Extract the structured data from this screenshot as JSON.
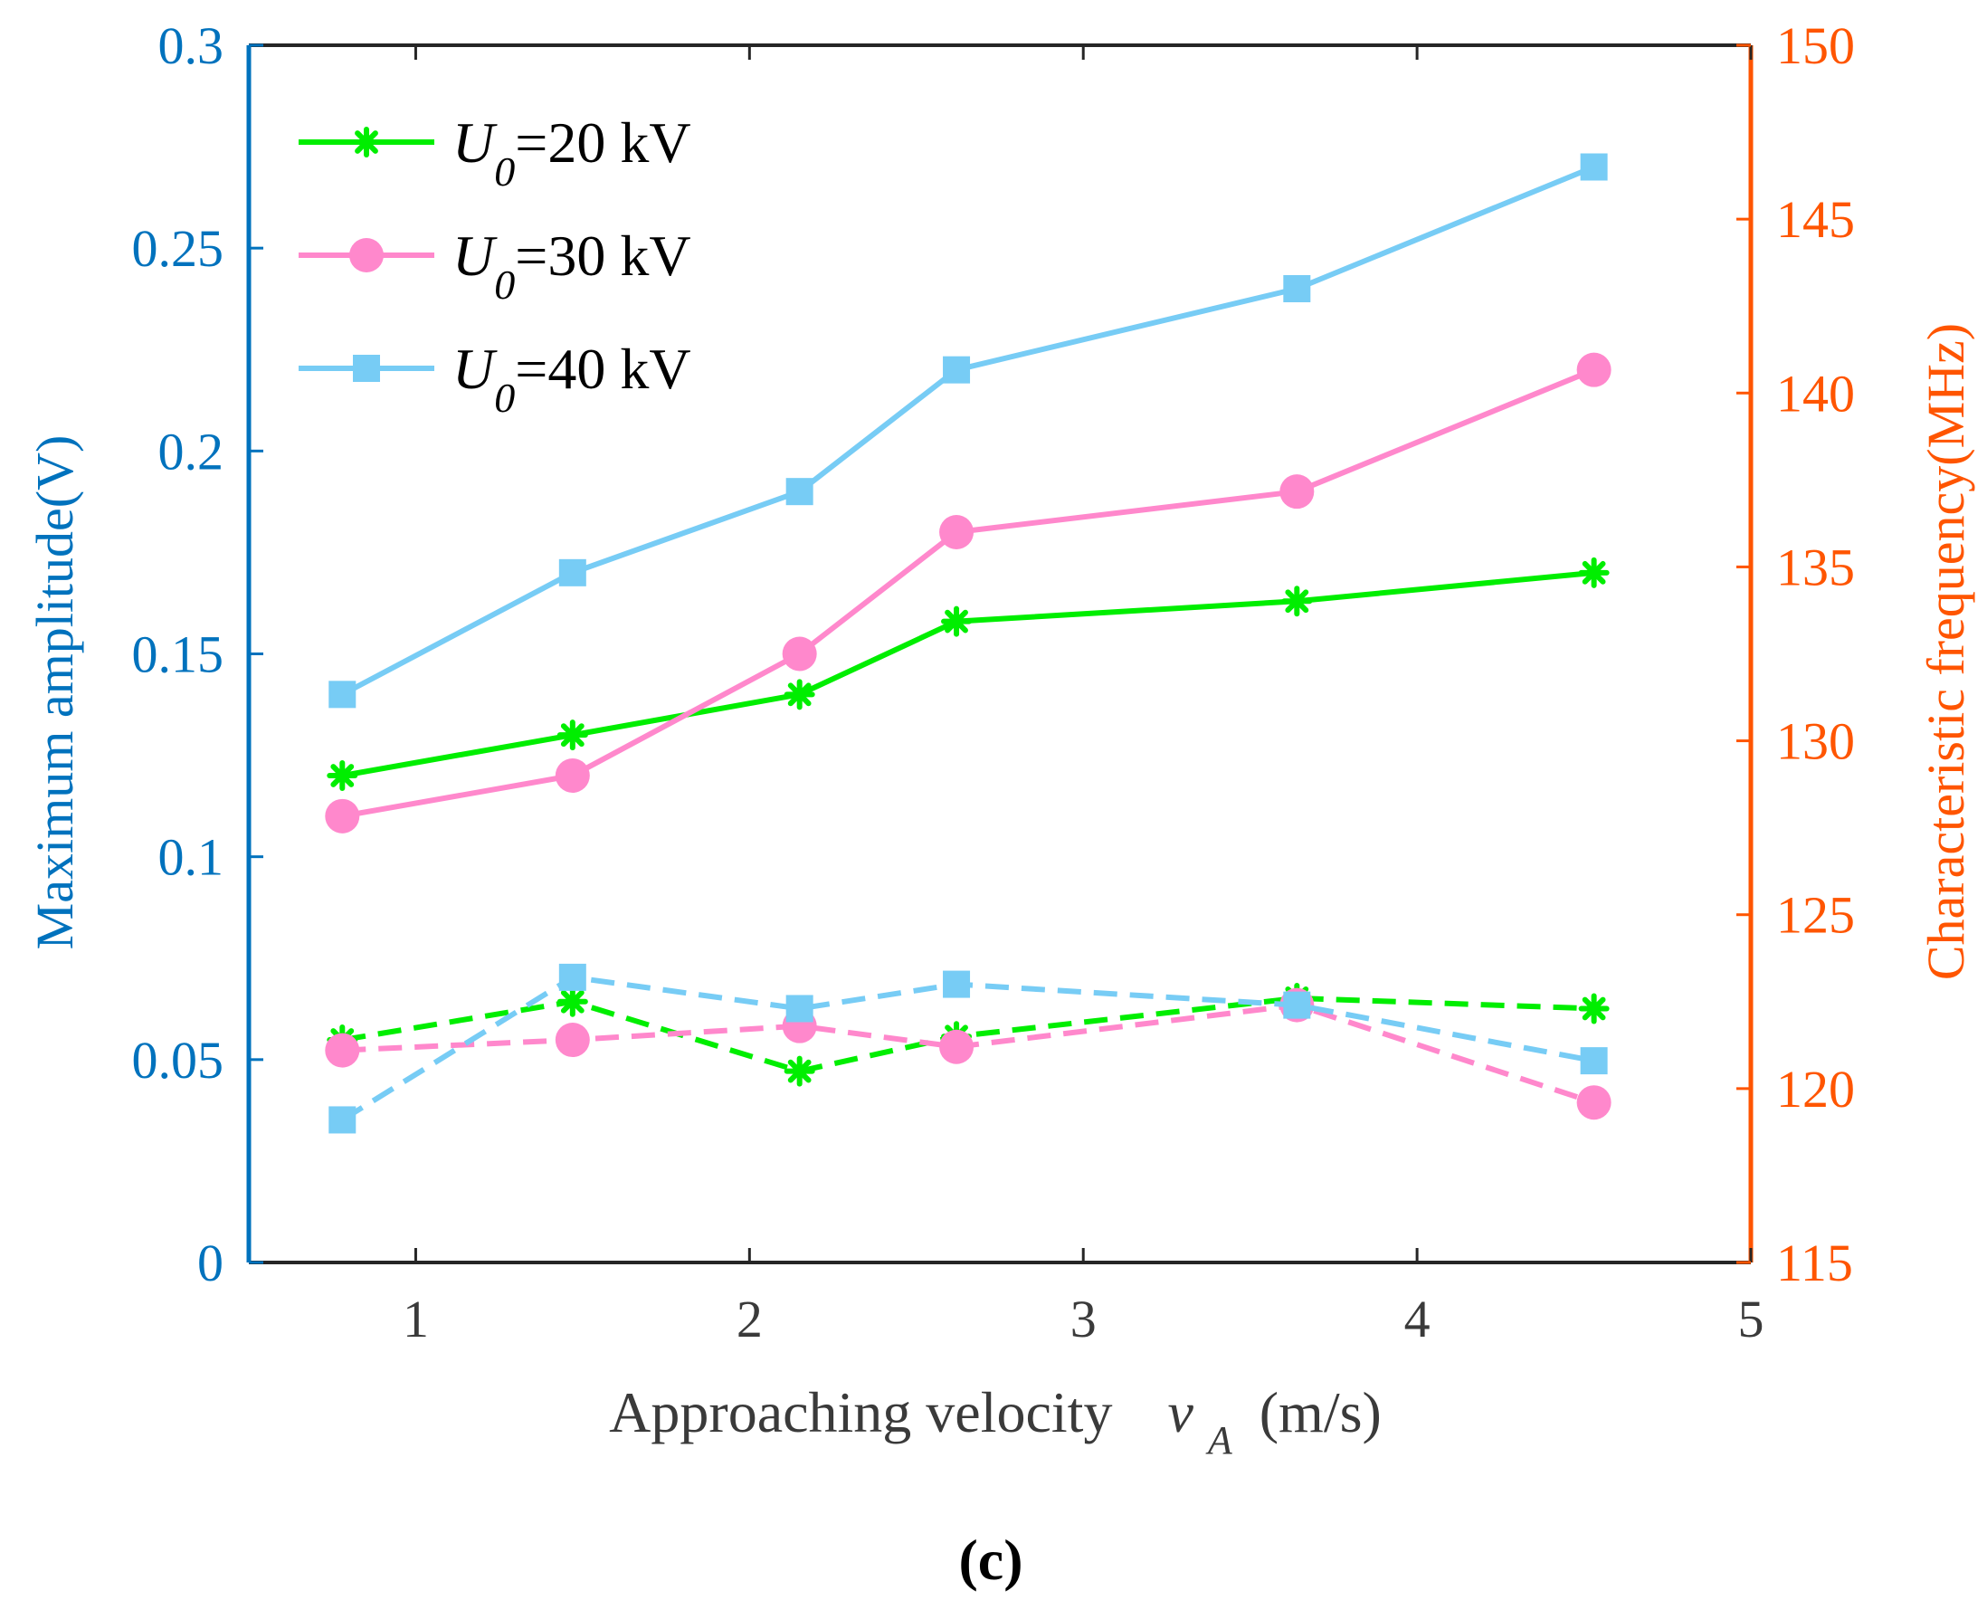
{
  "panel_label": "(c)",
  "legend": {
    "items": [
      {
        "prefix": "U",
        "sub": "0",
        "suffix": "=20 kV"
      },
      {
        "prefix": "U",
        "sub": "0",
        "suffix": "=30 kV"
      },
      {
        "prefix": "U",
        "sub": "0",
        "suffix": "=40 kV"
      }
    ]
  },
  "colors": {
    "left_axis": "#0072BD",
    "right_axis": "#FF5500",
    "s20": "#00EE00",
    "s30": "#FF88CC",
    "s40": "#77CCF5",
    "axis_text": "#3a3a3a"
  },
  "chart_data": {
    "type": "line",
    "xlabel": {
      "main": "Approaching velocity",
      "var": "v",
      "sub": "A",
      "unit": "(m/s)"
    },
    "ylabel_left": "Maximum amplitude(V)",
    "ylabel_right": "Characteristic frequency(MHz)",
    "xlim": [
      0.5,
      5
    ],
    "ylim_left": [
      0,
      0.3
    ],
    "ylim_right": [
      115,
      150
    ],
    "xticks": [
      "1",
      "2",
      "3",
      "4",
      "5"
    ],
    "yticks_left": [
      "0",
      "0.05",
      "0.1",
      "0.15",
      "0.2",
      "0.25",
      "0.3"
    ],
    "yticks_right": [
      "115",
      "120",
      "125",
      "130",
      "135",
      "140",
      "145",
      "150"
    ],
    "x": [
      0.78,
      1.47,
      2.15,
      2.62,
      3.64,
      4.53
    ],
    "series": [
      {
        "name": "U0=20 kV amplitude",
        "axis": "left",
        "style": "solid",
        "marker": "asterisk",
        "color_key": "s20",
        "values": [
          0.12,
          0.13,
          0.14,
          0.158,
          0.163,
          0.17
        ]
      },
      {
        "name": "U0=30 kV amplitude",
        "axis": "left",
        "style": "solid",
        "marker": "circle",
        "color_key": "s30",
        "values": [
          0.11,
          0.12,
          0.15,
          0.18,
          0.19,
          0.22
        ]
      },
      {
        "name": "U0=40 kV amplitude",
        "axis": "left",
        "style": "solid",
        "marker": "square",
        "color_key": "s40",
        "values": [
          0.14,
          0.17,
          0.19,
          0.22,
          0.24,
          0.27
        ]
      },
      {
        "name": "U0=20 kV frequency",
        "axis": "right",
        "style": "dashed",
        "marker": "asterisk",
        "color_key": "s20",
        "values": [
          121.4,
          122.5,
          120.5,
          121.5,
          122.6,
          122.3
        ]
      },
      {
        "name": "U0=30 kV frequency",
        "axis": "right",
        "style": "dashed",
        "marker": "circle",
        "color_key": "s30",
        "values": [
          121.1,
          121.4,
          121.8,
          121.2,
          122.4,
          119.6
        ]
      },
      {
        "name": "U0=40 kV frequency",
        "axis": "right",
        "style": "dashed",
        "marker": "square",
        "color_key": "s40",
        "values": [
          119.1,
          123.2,
          122.3,
          123.0,
          122.4,
          120.8
        ]
      }
    ]
  }
}
